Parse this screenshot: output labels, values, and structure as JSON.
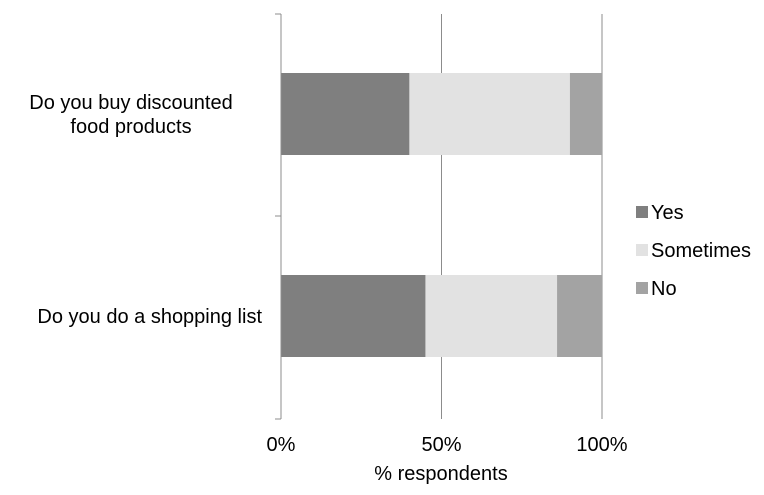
{
  "chart_data": {
    "type": "bar",
    "orientation": "horizontal",
    "stacked": "percent",
    "categories": [
      [
        "Do you buy discounted",
        "food products"
      ],
      [
        "Do you do a shopping list"
      ]
    ],
    "series": [
      {
        "name": "Yes",
        "values": [
          40,
          45
        ],
        "color": "#7f7f7f"
      },
      {
        "name": "Sometimes",
        "values": [
          50,
          41
        ],
        "color": "#e2e2e2"
      },
      {
        "name": "No",
        "values": [
          10,
          14
        ],
        "color": "#a3a3a3"
      }
    ],
    "xlabel": "% respondents",
    "x_ticks": [
      "0%",
      "50%",
      "100%"
    ],
    "xlim": [
      0,
      100
    ],
    "grid": true,
    "legend": "right"
  }
}
